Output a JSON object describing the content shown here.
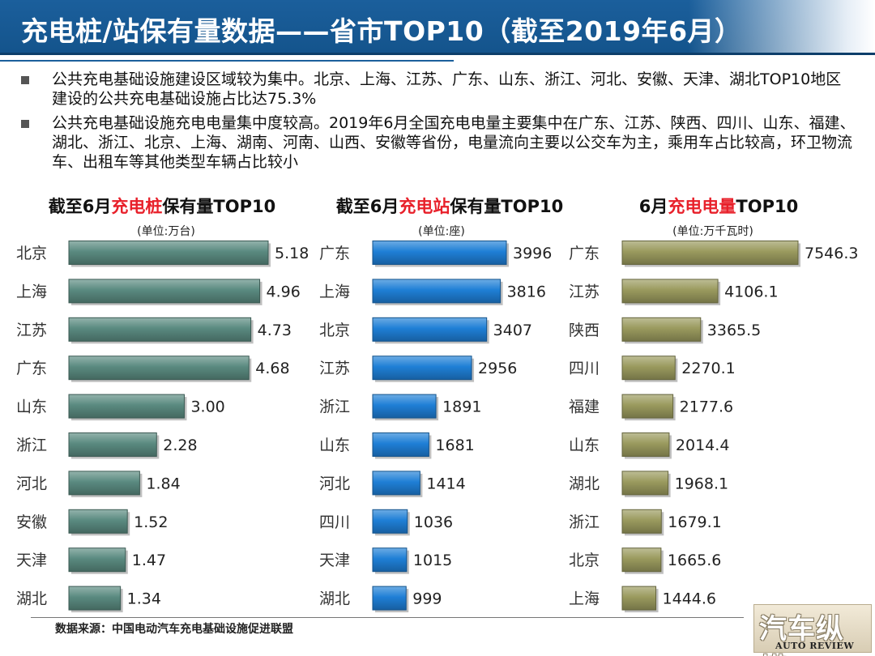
{
  "page": {
    "title": "充电桩/站保有量数据——省市TOP10（截至2019年6月）",
    "bullets": [
      "公共充电基础设施建设区域较为集中。北京、上海、江苏、广东、山东、浙江、河北、安徽、天津、湖北TOP10地区建设的公共充电基础设施占比达75.3%",
      "公共充电基础设施充电电量集中度较高。2019年6月全国充电电量主要集中在广东、江苏、陕西、四川、山东、福建、湖北、浙江、北京、上海、湖南、河南、山西、安徽等省份，电量流向主要以公交车为主，乘用车占比较高，环卫物流车、出租车等其他类型车辆占比较小"
    ],
    "source": "数据来源：中国电动汽车充电基础设施促进联盟",
    "logo_main": "汽车纵横",
    "logo_sub": "AUTO REVIEW"
  },
  "colors": {
    "highlight": "#e8202a",
    "pile": "#5a8a80",
    "station": "#1f7fd6",
    "energy": "#9a9a5e"
  },
  "chart_data": [
    {
      "type": "bar",
      "orientation": "horizontal",
      "title_parts": [
        "截至6月",
        "充电桩",
        "保有量TOP10"
      ],
      "unit": "(单位:万台)",
      "categories": [
        "北京",
        "上海",
        "江苏",
        "广东",
        "山东",
        "浙江",
        "河北",
        "安徽",
        "天津",
        "湖北"
      ],
      "values": [
        5.18,
        4.96,
        4.73,
        4.68,
        3.0,
        2.28,
        1.84,
        1.52,
        1.47,
        1.34
      ],
      "labels": [
        "5.18",
        "4.96",
        "4.73",
        "4.68",
        "3.00",
        "2.28",
        "1.84",
        "1.52",
        "1.47",
        "1.34"
      ],
      "color": "pile"
    },
    {
      "type": "bar",
      "orientation": "horizontal",
      "title_parts": [
        "截至6月",
        "充电站",
        "保有量TOP10"
      ],
      "unit": "(单位:座)",
      "categories": [
        "广东",
        "上海",
        "北京",
        "江苏",
        "浙江",
        "山东",
        "河北",
        "四川",
        "天津",
        "湖北"
      ],
      "values": [
        3996,
        3816,
        3407,
        2956,
        1891,
        1681,
        1414,
        1036,
        1015,
        999
      ],
      "labels": [
        "3996",
        "3816",
        "3407",
        "2956",
        "1891",
        "1681",
        "1414",
        "1036",
        "1015",
        "999"
      ],
      "color": "station"
    },
    {
      "type": "bar",
      "orientation": "horizontal",
      "title_parts": [
        "6月",
        "充电电量",
        "TOP10"
      ],
      "unit": "(单位:万千瓦时)",
      "categories": [
        "广东",
        "江苏",
        "陕西",
        "四川",
        "福建",
        "山东",
        "湖北",
        "浙江",
        "北京",
        "上海"
      ],
      "values": [
        7546.3,
        4106.1,
        3365.5,
        2270.1,
        2177.6,
        2014.4,
        1968.1,
        1679.1,
        1665.6,
        1444.6
      ],
      "labels": [
        "7546.3",
        "4106.1",
        "3365.5",
        "2270.1",
        "2177.6",
        "2014.4",
        "1968.1",
        "1679.1",
        "1665.6",
        "1444.6"
      ],
      "color": "energy"
    }
  ]
}
